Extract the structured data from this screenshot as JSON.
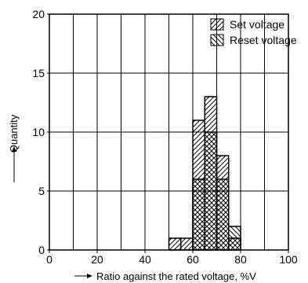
{
  "chart_data": {
    "type": "bar",
    "xlabel": "Ratio against the rated voltage, %V",
    "ylabel": "Quantity",
    "xlim": [
      0,
      100
    ],
    "ylim": [
      0,
      20
    ],
    "x_ticks": [
      0,
      20,
      40,
      60,
      80,
      100
    ],
    "y_ticks": [
      0,
      5,
      10,
      15,
      20
    ],
    "bin_width": 5,
    "grid": true,
    "legend_position": "top-right",
    "series": [
      {
        "name": "Set voltage",
        "hatch": "diagonal-down",
        "bins": [
          {
            "x": 50,
            "value": 1
          },
          {
            "x": 55,
            "value": 1
          },
          {
            "x": 60,
            "value": 11
          },
          {
            "x": 65,
            "value": 13
          },
          {
            "x": 70,
            "value": 8
          },
          {
            "x": 75,
            "value": 1
          }
        ]
      },
      {
        "name": "Reset voltage",
        "hatch": "diagonal-up",
        "bins": [
          {
            "x": 60,
            "value": 6
          },
          {
            "x": 65,
            "value": 10
          },
          {
            "x": 70,
            "value": 6
          },
          {
            "x": 75,
            "value": 2
          }
        ]
      }
    ]
  }
}
